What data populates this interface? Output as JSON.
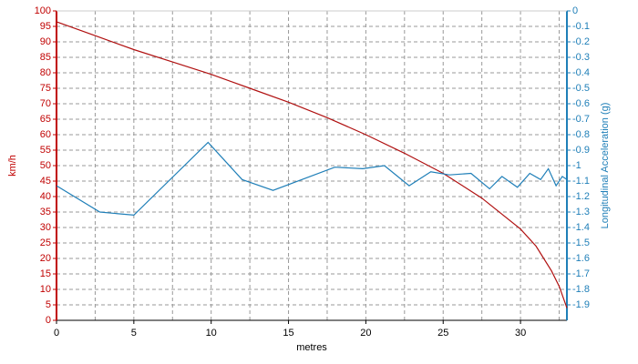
{
  "chart_data": {
    "type": "line",
    "xlabel": "metres",
    "ylabel": "km/h",
    "y2label": "Longitudinal Acceleration (g)",
    "xlim": [
      0,
      33
    ],
    "xticks": [
      0,
      5,
      10,
      15,
      20,
      25,
      30
    ],
    "ylim": [
      0,
      100
    ],
    "yticks": [
      0,
      5,
      10,
      15,
      20,
      25,
      30,
      35,
      40,
      45,
      50,
      55,
      60,
      65,
      70,
      75,
      80,
      85,
      90,
      95,
      100
    ],
    "y2lim": [
      -2,
      0
    ],
    "y2ticks": [
      0,
      -0.1,
      -0.2,
      -0.3,
      -0.4,
      -0.5,
      -0.6,
      -0.7,
      -0.8,
      -0.9,
      -1,
      -1.1,
      -1.2,
      -1.3,
      -1.4,
      -1.5,
      -1.6,
      -1.7,
      -1.8,
      -1.9
    ],
    "grid": true,
    "ycolor": "#c00000",
    "y2color": "#1f7fb8",
    "series": [
      {
        "color": "#b01010",
        "x": [
          0,
          2.5,
          5,
          7.5,
          10,
          12.5,
          15,
          17.5,
          20,
          22.5,
          25,
          27.5,
          30,
          31,
          32,
          32.5,
          33
        ],
        "values": [
          96.5,
          92,
          87.5,
          83.5,
          79.5,
          75,
          70.5,
          65.5,
          60,
          54,
          47.5,
          39.5,
          29.5,
          24,
          16,
          11,
          4
        ]
      },
      {
        "color": "#1f7fb8",
        "axis": "y2",
        "x": [
          0,
          2.8,
          5,
          9.8,
          12,
          14,
          18,
          19.8,
          21.2,
          22.8,
          24.2,
          25.4,
          26.8,
          28,
          28.8,
          29.8,
          30.6,
          31.3,
          31.8,
          32.3,
          32.7,
          33
        ],
        "values": [
          -1.13,
          -1.3,
          -1.32,
          -0.85,
          -1.09,
          -1.16,
          -1.01,
          -1.02,
          -1,
          -1.13,
          -1.04,
          -1.06,
          -1.05,
          -1.15,
          -1.07,
          -1.14,
          -1.05,
          -1.09,
          -1.02,
          -1.13,
          -1.07,
          -1.09
        ]
      }
    ]
  }
}
